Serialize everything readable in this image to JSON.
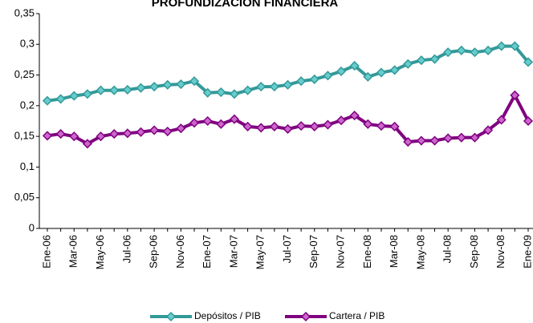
{
  "chart_data": {
    "type": "line",
    "title": "PROFUNDIZACIÓN FINANCIERA",
    "categories": [
      "Ene-06",
      null,
      "Mar-06",
      null,
      "May-06",
      null,
      "Jul-06",
      null,
      "Sep-06",
      null,
      "Nov-06",
      null,
      "Ene-07",
      null,
      "Mar-07",
      null,
      "May-07",
      null,
      "Jul-07",
      null,
      "Sep-07",
      null,
      "Nov-07",
      null,
      "Ene-08",
      null,
      "Mar-08",
      null,
      "May-08",
      null,
      "Jul-08",
      null,
      "Sep-08",
      null,
      "Nov-08",
      null,
      "Ene-09"
    ],
    "series": [
      {
        "name": "Depósitos / PIB",
        "color": "#339999",
        "marker_color": "#66cccc",
        "values": [
          0.208,
          0.211,
          0.216,
          0.219,
          0.225,
          0.225,
          0.226,
          0.229,
          0.231,
          0.234,
          0.235,
          0.24,
          0.221,
          0.222,
          0.219,
          0.225,
          0.231,
          0.231,
          0.234,
          0.24,
          0.243,
          0.249,
          0.256,
          0.265,
          0.247,
          0.254,
          0.258,
          0.268,
          0.274,
          0.276,
          0.287,
          0.29,
          0.287,
          0.29,
          0.297,
          0.297,
          0.271
        ]
      },
      {
        "name": "Cartera / PIB",
        "color": "#800080",
        "marker_color": "#cc66cc",
        "values": [
          0.151,
          0.154,
          0.15,
          0.138,
          0.15,
          0.154,
          0.155,
          0.157,
          0.16,
          0.158,
          0.163,
          0.172,
          0.175,
          0.17,
          0.178,
          0.166,
          0.164,
          0.166,
          0.162,
          0.167,
          0.166,
          0.169,
          0.176,
          0.184,
          0.17,
          0.167,
          0.166,
          0.141,
          0.143,
          0.143,
          0.147,
          0.148,
          0.148,
          0.16,
          0.177,
          0.217,
          0.175
        ]
      }
    ],
    "ylim": [
      0,
      0.35
    ],
    "yticks": [
      0,
      {
        "value": 0.05,
        "label": "0,05"
      },
      {
        "value": 0.1,
        "label": "0,1"
      },
      {
        "value": 0.15,
        "label": "0,15"
      },
      {
        "value": 0.2,
        "label": "0,2"
      },
      {
        "value": 0.25,
        "label": "0,25"
      },
      {
        "value": 0.3,
        "label": "0,3"
      },
      {
        "value": 0.35,
        "label": "0,35"
      }
    ],
    "grid": false,
    "legend": "bottom"
  }
}
